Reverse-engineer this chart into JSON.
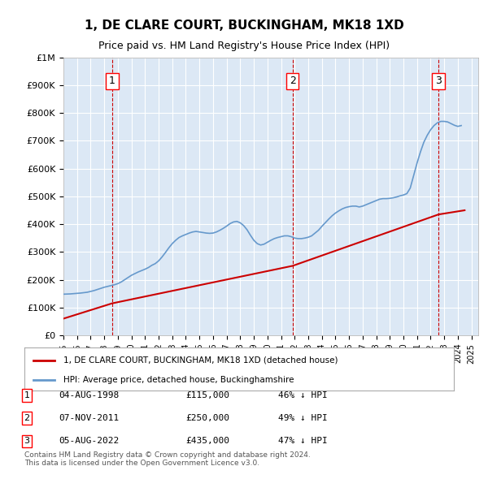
{
  "title": "1, DE CLARE COURT, BUCKINGHAM, MK18 1XD",
  "subtitle": "Price paid vs. HM Land Registry's House Price Index (HPI)",
  "ylabel_ticks": [
    "£0",
    "£100K",
    "£200K",
    "£300K",
    "£400K",
    "£500K",
    "£600K",
    "£700K",
    "£800K",
    "£900K",
    "£1M"
  ],
  "ytick_values": [
    0,
    100000,
    200000,
    300000,
    400000,
    500000,
    600000,
    700000,
    800000,
    900000,
    1000000
  ],
  "ylim": [
    0,
    1000000
  ],
  "xlim_start": 1995.0,
  "xlim_end": 2025.5,
  "background_color": "#e8f0f8",
  "plot_bg_color": "#dce8f5",
  "grid_color": "#ffffff",
  "hpi_color": "#6699cc",
  "price_color": "#cc0000",
  "legend_label_price": "1, DE CLARE COURT, BUCKINGHAM, MK18 1XD (detached house)",
  "legend_label_hpi": "HPI: Average price, detached house, Buckinghamshire",
  "transactions": [
    {
      "num": 1,
      "date": "04-AUG-1998",
      "price": 115000,
      "pct": "46%",
      "year": 1998.58
    },
    {
      "num": 2,
      "date": "07-NOV-2011",
      "price": 250000,
      "pct": "49%",
      "year": 2011.85
    },
    {
      "num": 3,
      "date": "05-AUG-2022",
      "price": 435000,
      "pct": "47%",
      "year": 2022.58
    }
  ],
  "footnote": "Contains HM Land Registry data © Crown copyright and database right 2024.\nThis data is licensed under the Open Government Licence v3.0.",
  "hpi_data_x": [
    1995.0,
    1995.25,
    1995.5,
    1995.75,
    1996.0,
    1996.25,
    1996.5,
    1996.75,
    1997.0,
    1997.25,
    1997.5,
    1997.75,
    1998.0,
    1998.25,
    1998.5,
    1998.75,
    1999.0,
    1999.25,
    1999.5,
    1999.75,
    2000.0,
    2000.25,
    2000.5,
    2000.75,
    2001.0,
    2001.25,
    2001.5,
    2001.75,
    2002.0,
    2002.25,
    2002.5,
    2002.75,
    2003.0,
    2003.25,
    2003.5,
    2003.75,
    2004.0,
    2004.25,
    2004.5,
    2004.75,
    2005.0,
    2005.25,
    2005.5,
    2005.75,
    2006.0,
    2006.25,
    2006.5,
    2006.75,
    2007.0,
    2007.25,
    2007.5,
    2007.75,
    2008.0,
    2008.25,
    2008.5,
    2008.75,
    2009.0,
    2009.25,
    2009.5,
    2009.75,
    2010.0,
    2010.25,
    2010.5,
    2010.75,
    2011.0,
    2011.25,
    2011.5,
    2011.75,
    2012.0,
    2012.25,
    2012.5,
    2012.75,
    2013.0,
    2013.25,
    2013.5,
    2013.75,
    2014.0,
    2014.25,
    2014.5,
    2014.75,
    2015.0,
    2015.25,
    2015.5,
    2015.75,
    2016.0,
    2016.25,
    2016.5,
    2016.75,
    2017.0,
    2017.25,
    2017.5,
    2017.75,
    2018.0,
    2018.25,
    2018.5,
    2018.75,
    2019.0,
    2019.25,
    2019.5,
    2019.75,
    2020.0,
    2020.25,
    2020.5,
    2020.75,
    2021.0,
    2021.25,
    2021.5,
    2021.75,
    2022.0,
    2022.25,
    2022.5,
    2022.75,
    2023.0,
    2023.25,
    2023.5,
    2023.75,
    2024.0,
    2024.25
  ],
  "hpi_data_y": [
    148000,
    148500,
    149000,
    150000,
    151000,
    152000,
    153500,
    155000,
    158000,
    161000,
    165000,
    169000,
    173000,
    176000,
    179000,
    182000,
    186000,
    192000,
    200000,
    208000,
    216000,
    222000,
    228000,
    233000,
    238000,
    244000,
    252000,
    258000,
    268000,
    282000,
    298000,
    315000,
    330000,
    342000,
    352000,
    358000,
    363000,
    368000,
    372000,
    374000,
    372000,
    370000,
    368000,
    367000,
    368000,
    372000,
    378000,
    385000,
    393000,
    402000,
    408000,
    410000,
    405000,
    395000,
    380000,
    360000,
    342000,
    330000,
    325000,
    328000,
    335000,
    342000,
    348000,
    352000,
    355000,
    358000,
    358000,
    355000,
    350000,
    348000,
    348000,
    350000,
    353000,
    358000,
    368000,
    378000,
    392000,
    405000,
    418000,
    430000,
    440000,
    448000,
    455000,
    460000,
    463000,
    465000,
    465000,
    462000,
    465000,
    470000,
    475000,
    480000,
    485000,
    490000,
    492000,
    492000,
    493000,
    495000,
    498000,
    502000,
    505000,
    510000,
    530000,
    575000,
    620000,
    660000,
    695000,
    720000,
    740000,
    755000,
    765000,
    770000,
    770000,
    768000,
    762000,
    756000,
    752000,
    755000
  ],
  "price_data_x": [
    1995.0,
    1998.58,
    2011.85,
    2022.58,
    2024.5
  ],
  "price_data_y": [
    60000,
    115000,
    250000,
    435000,
    450000
  ],
  "vline_x": [
    1998.58,
    2011.85,
    2022.58
  ],
  "vline_color": "#cc0000"
}
